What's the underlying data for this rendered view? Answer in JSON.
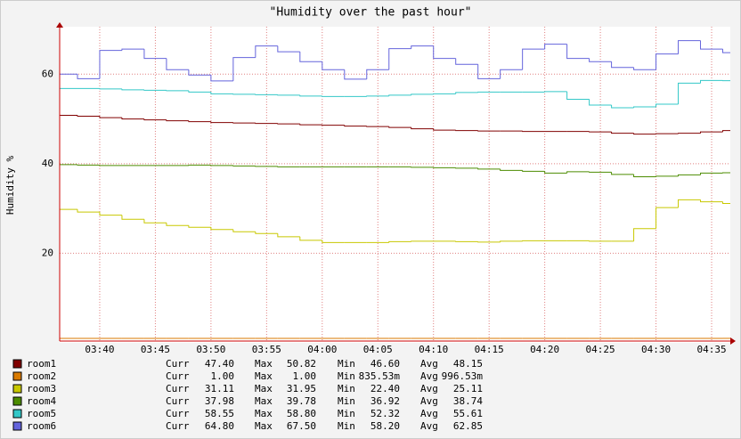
{
  "chart_data": {
    "type": "step",
    "title": "\"Humidity over the past hour\"",
    "y_label": "Humidity %",
    "x": [
      "03:36",
      "03:38",
      "03:40",
      "03:42",
      "03:44",
      "03:46",
      "03:48",
      "03:50",
      "03:52",
      "03:54",
      "03:56",
      "03:58",
      "04:00",
      "04:02",
      "04:04",
      "04:06",
      "04:08",
      "04:10",
      "04:12",
      "04:14",
      "04:16",
      "04:18",
      "04:20",
      "04:22",
      "04:24",
      "04:26",
      "04:28",
      "04:30",
      "04:32",
      "04:34",
      "04:36"
    ],
    "xlim": [
      "03:36",
      "04:37"
    ],
    "xticks": [
      "03:40",
      "03:45",
      "03:50",
      "03:55",
      "04:00",
      "04:05",
      "04:10",
      "04:15",
      "04:20",
      "04:25",
      "04:30",
      "04:35"
    ],
    "ylim": [
      0,
      70
    ],
    "yticks": [
      20,
      40,
      60
    ],
    "grid": true,
    "stat_labels": [
      "Curr",
      "Max",
      "Min",
      "Avg"
    ],
    "series": [
      {
        "name": "room1",
        "color": "#800000",
        "stats": [
          "47.40",
          "50.82",
          "46.60",
          "48.15"
        ],
        "values": [
          50.8,
          50.6,
          50.3,
          50,
          49.8,
          49.6,
          49.4,
          49.2,
          49.1,
          49,
          48.9,
          48.7,
          48.6,
          48.4,
          48.3,
          48.1,
          47.8,
          47.5,
          47.4,
          47.3,
          47.3,
          47.2,
          47.2,
          47.2,
          47.1,
          46.8,
          46.6,
          46.7,
          46.8,
          47.1,
          47.4
        ]
      },
      {
        "name": "room2",
        "color": "#d97a00",
        "stats": [
          "1.00",
          "1.00",
          "835.53m",
          "996.53m"
        ],
        "values": [
          1,
          1,
          1,
          1,
          1,
          1,
          1,
          1,
          1,
          1,
          1,
          1,
          1,
          1,
          1,
          1,
          1,
          1,
          1,
          1,
          1,
          1,
          1,
          1,
          1,
          1,
          1,
          1,
          1,
          1,
          1
        ]
      },
      {
        "name": "room3",
        "color": "#c8c800",
        "stats": [
          "31.11",
          "31.95",
          "22.40",
          "25.11"
        ],
        "values": [
          29.8,
          29.2,
          28.5,
          27.6,
          26.8,
          26.2,
          25.8,
          25.3,
          24.8,
          24.4,
          23.7,
          22.9,
          22.4,
          22.4,
          22.4,
          22.6,
          22.7,
          22.7,
          22.6,
          22.5,
          22.7,
          22.8,
          22.8,
          22.8,
          22.7,
          22.7,
          25.5,
          30.2,
          31.95,
          31.5,
          31.11
        ]
      },
      {
        "name": "room4",
        "color": "#4c8c00",
        "stats": [
          "37.98",
          "39.78",
          "36.92",
          "38.74"
        ],
        "values": [
          39.8,
          39.7,
          39.6,
          39.6,
          39.6,
          39.6,
          39.7,
          39.6,
          39.5,
          39.4,
          39.3,
          39.3,
          39.3,
          39.3,
          39.3,
          39.3,
          39.2,
          39.1,
          39,
          38.8,
          38.5,
          38.3,
          37.9,
          38.2,
          38.1,
          37.6,
          37.1,
          37.2,
          37.5,
          37.9,
          37.98
        ]
      },
      {
        "name": "room5",
        "color": "#33c8c8",
        "stats": [
          "58.55",
          "58.80",
          "52.32",
          "55.61"
        ],
        "values": [
          56.8,
          56.8,
          56.7,
          56.5,
          56.4,
          56.3,
          56,
          55.6,
          55.5,
          55.4,
          55.3,
          55.1,
          55,
          55,
          55.1,
          55.3,
          55.5,
          55.6,
          55.9,
          56,
          56,
          56,
          56.1,
          54.4,
          53.1,
          52.5,
          52.7,
          53.3,
          58,
          58.6,
          58.55
        ]
      },
      {
        "name": "room6",
        "color": "#6464dc",
        "stats": [
          "64.80",
          "67.50",
          "58.20",
          "62.85"
        ],
        "values": [
          60,
          59,
          65.3,
          65.6,
          63.5,
          61,
          59.8,
          58.5,
          63.7,
          66.3,
          65,
          62.8,
          61,
          58.9,
          61,
          65.7,
          66.3,
          63.5,
          62.2,
          59,
          61,
          65.6,
          66.7,
          63.5,
          62.8,
          61.5,
          61,
          64.5,
          67.5,
          65.6,
          64.8
        ]
      }
    ]
  }
}
